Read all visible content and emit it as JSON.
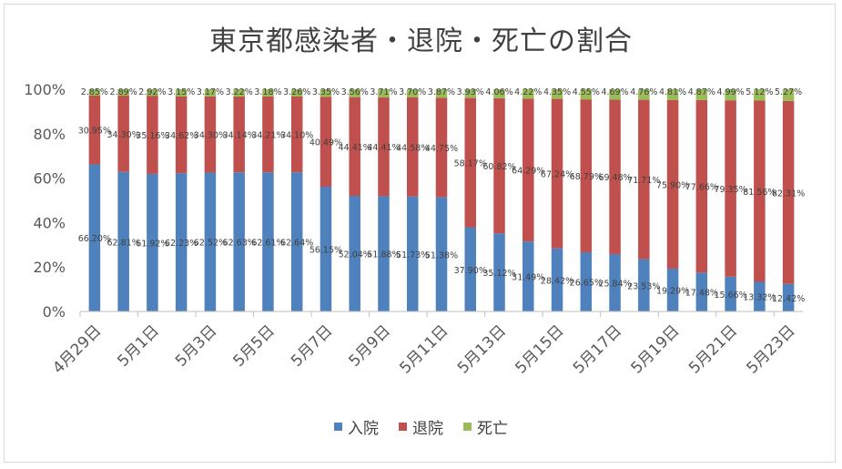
{
  "chart_data": {
    "type": "bar",
    "stacked": true,
    "title": "東京都感染者・退院・死亡の割合",
    "categories": [
      "4月29日",
      "4月30日",
      "5月1日",
      "5月2日",
      "5月3日",
      "5月4日",
      "5月5日",
      "5月6日",
      "5月7日",
      "5月8日",
      "5月9日",
      "5月10日",
      "5月11日",
      "5月12日",
      "5月13日",
      "5月14日",
      "5月15日",
      "5月16日",
      "5月17日",
      "5月18日",
      "5月19日",
      "5月20日",
      "5月21日",
      "5月22日",
      "5月23日"
    ],
    "x_tick_labels": [
      "4月29日",
      "5月1日",
      "5月3日",
      "5月5日",
      "5月7日",
      "5月9日",
      "5月11日",
      "5月13日",
      "5月15日",
      "5月17日",
      "5月19日",
      "5月21日",
      "5月23日"
    ],
    "y_tick_labels": [
      "0%",
      "20%",
      "40%",
      "60%",
      "80%",
      "100%"
    ],
    "ylim": [
      0,
      100
    ],
    "grid": false,
    "legend_position": "bottom",
    "series": [
      {
        "name": "入院",
        "color": "#4f81bd",
        "values": [
          66.2,
          62.81,
          61.92,
          62.23,
          62.52,
          62.63,
          62.61,
          62.64,
          56.15,
          52.04,
          51.88,
          51.73,
          51.38,
          37.9,
          35.12,
          31.49,
          28.42,
          26.65,
          25.84,
          23.53,
          19.29,
          17.48,
          15.66,
          13.32,
          12.42
        ]
      },
      {
        "name": "退院",
        "color": "#c0504d",
        "values": [
          30.95,
          34.3,
          35.16,
          34.62,
          34.3,
          34.14,
          34.21,
          34.1,
          40.49,
          44.41,
          44.41,
          44.58,
          44.75,
          58.17,
          60.82,
          64.29,
          67.24,
          68.79,
          69.48,
          71.71,
          75.9,
          77.66,
          79.35,
          81.56,
          82.31
        ]
      },
      {
        "name": "死亡",
        "color": "#9bbb59",
        "values": [
          2.85,
          2.89,
          2.92,
          3.15,
          3.17,
          3.22,
          3.18,
          3.26,
          3.35,
          3.56,
          3.71,
          3.7,
          3.87,
          3.93,
          4.06,
          4.22,
          4.35,
          4.55,
          4.69,
          4.76,
          4.81,
          4.87,
          4.99,
          5.12,
          5.27
        ]
      }
    ],
    "data_labels": {
      "入院": [
        "66.20%",
        "62.81%",
        "61.92%",
        "62.23%",
        "62.52%",
        "62.63%",
        "62.61%",
        "62.64%",
        "56.15%",
        "52.04%",
        "51.88%",
        "51.73%",
        "51.38%",
        "37.90%",
        "35.12%",
        "31.49%",
        "28.42%",
        "26.65%",
        "25.84%",
        "23.53%",
        "19.29%",
        "17.48%",
        "15.66%",
        "13.32%",
        "12.42%"
      ],
      "退院": [
        "30.95%",
        "34.30%",
        "35.16%",
        "34.62%",
        "34.30%",
        "34.14%",
        "34.21%",
        "34.10%",
        "40.49%",
        "44.41%",
        "44.41%",
        "44.58%",
        "44.75%",
        "58.17%",
        "60.82%",
        "64.29%",
        "67.24%",
        "68.79%",
        "69.48%",
        "71.71%",
        "75.90%",
        "77.66%",
        "79.35%",
        "81.56%",
        "82.31%"
      ],
      "死亡": [
        "2.85%",
        "2.89%",
        "2.92%",
        "3.15%",
        "3.17%",
        "3.22%",
        "3.18%",
        "3.26%",
        "3.35%",
        "3.56%",
        "3.71%",
        "3.70%",
        "3.87%",
        "3.93%",
        "4.06%",
        "4.22%",
        "4.35%",
        "4.55%",
        "4.69%",
        "4.76%",
        "4.81%",
        "4.87%",
        "4.99%",
        "5.12%",
        "5.27%"
      ]
    }
  }
}
